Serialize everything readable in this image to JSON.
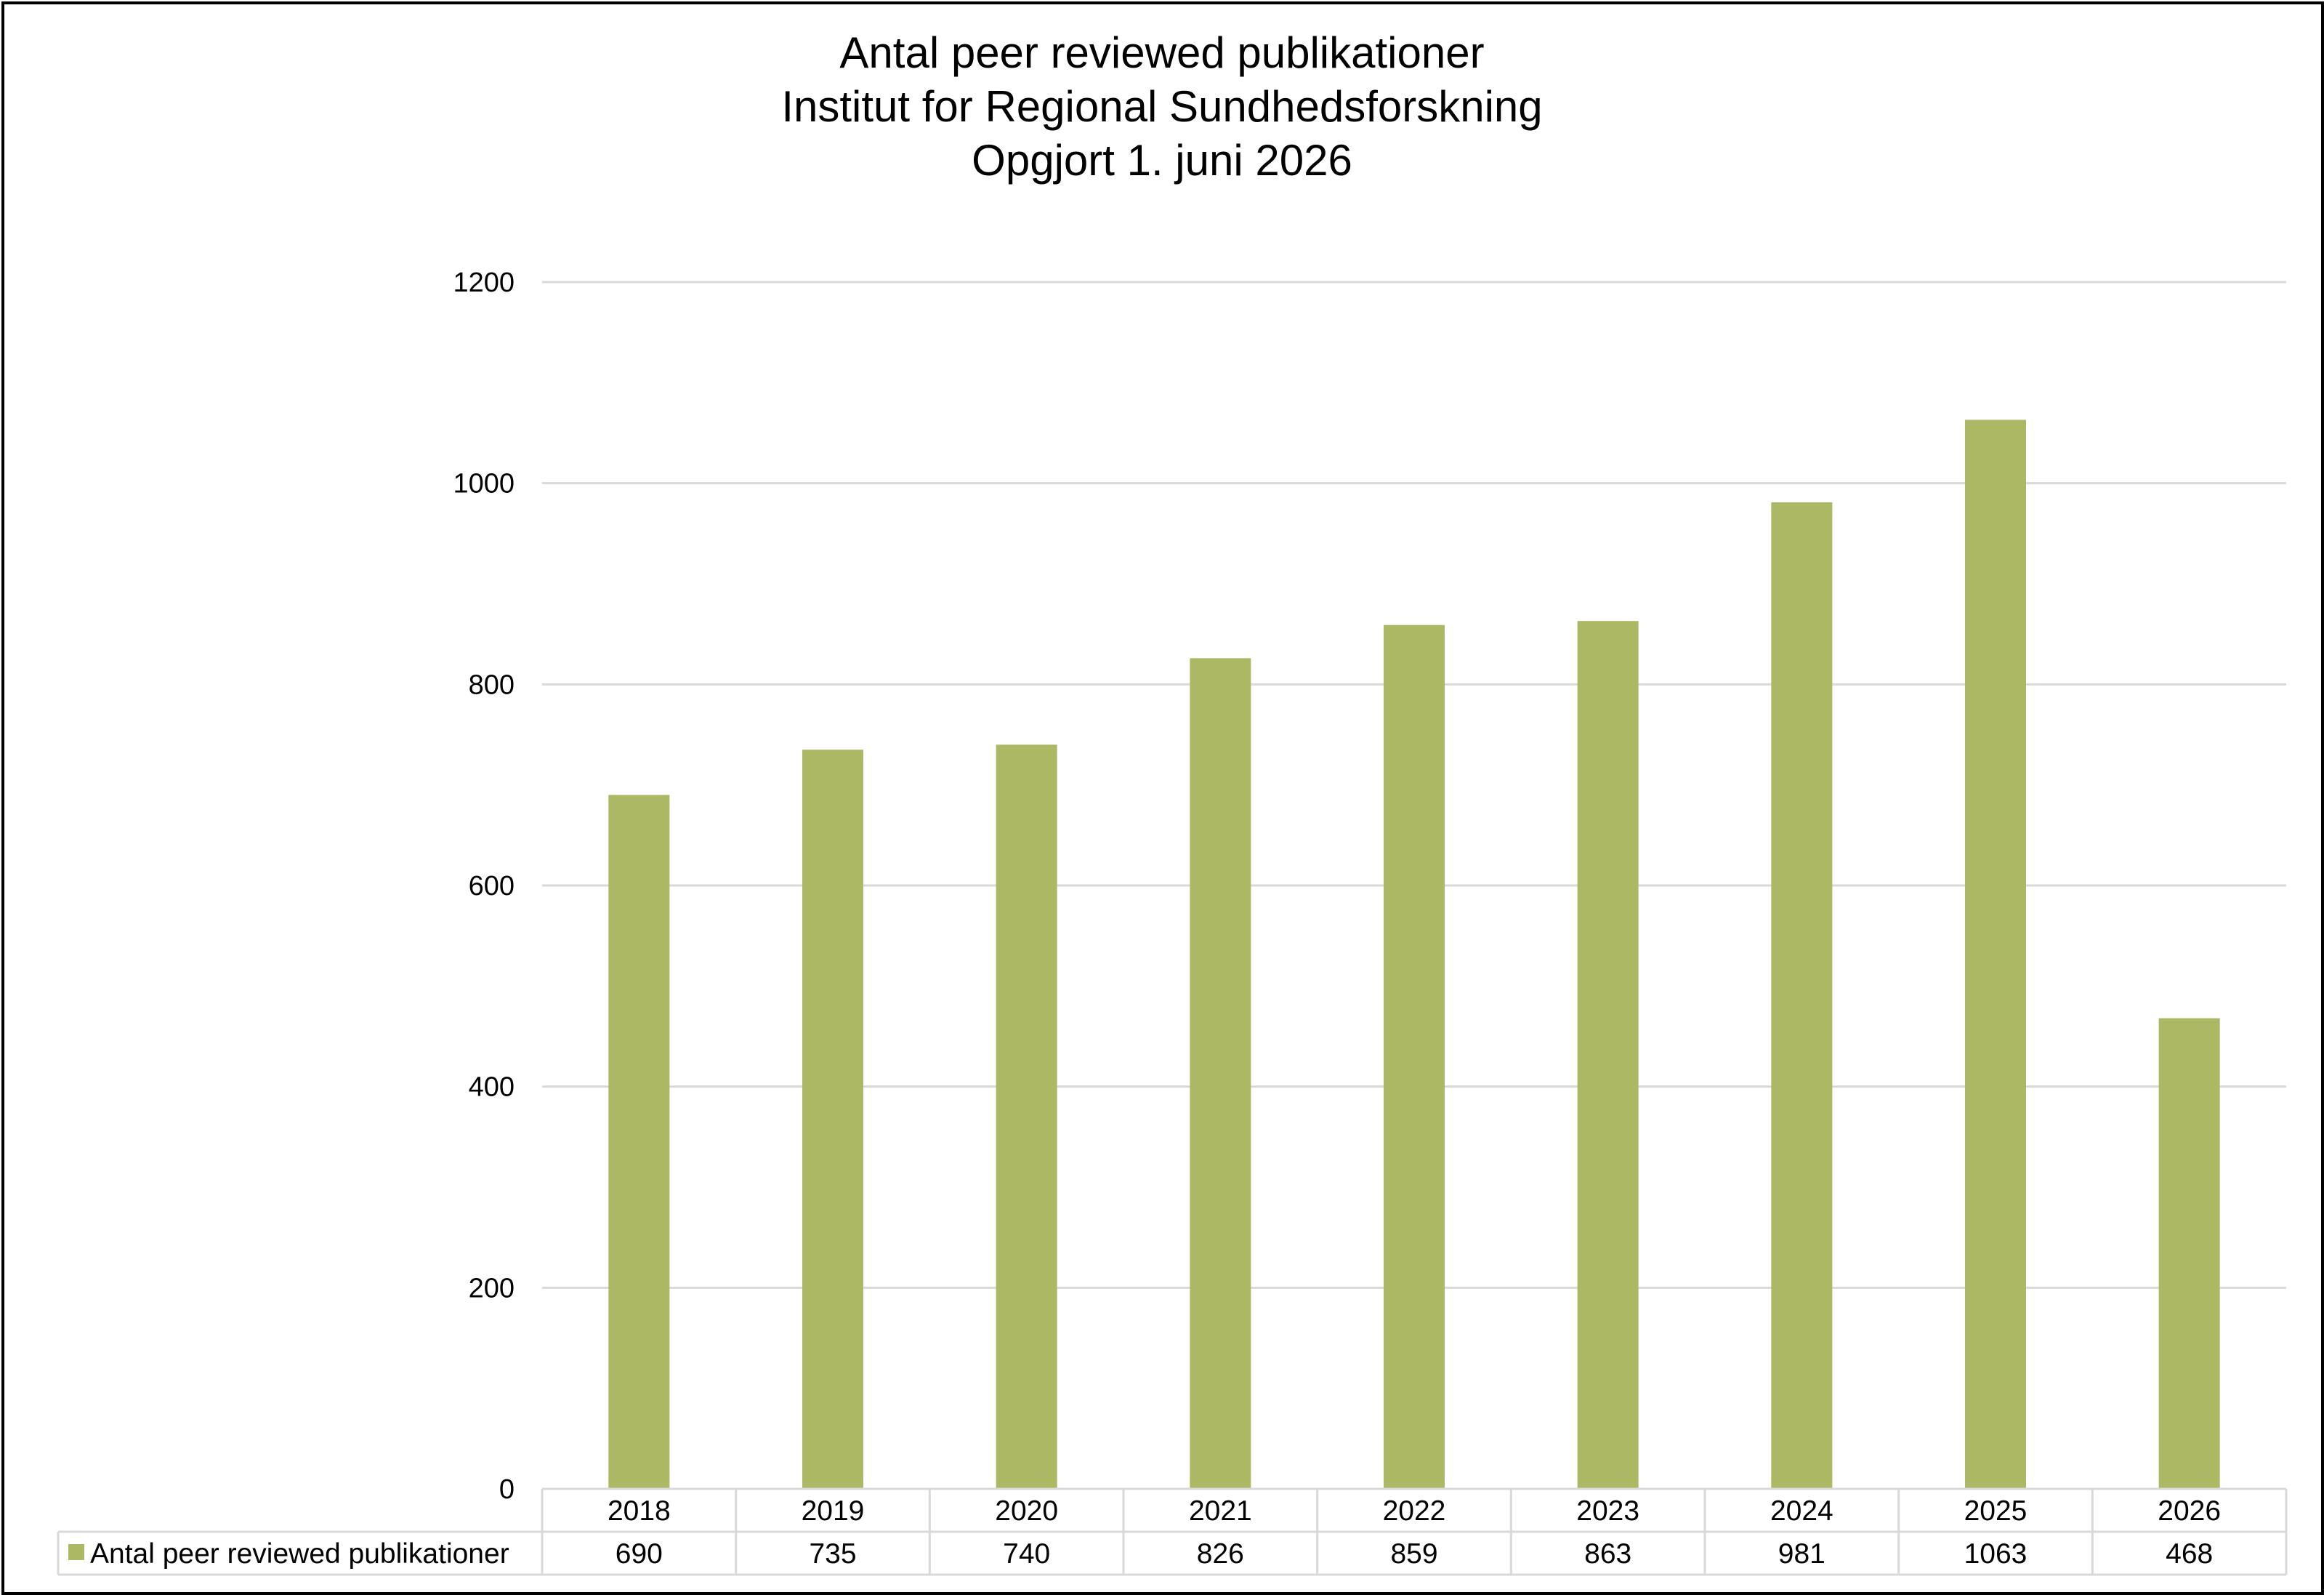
{
  "chart_data": {
    "type": "bar",
    "title_lines": [
      "Antal peer reviewed publikationer",
      "Institut for Regional Sundhedsforskning",
      "Opgjort 1. juni 2026"
    ],
    "categories": [
      "2018",
      "2019",
      "2020",
      "2021",
      "2022",
      "2023",
      "2024",
      "2025",
      "2026"
    ],
    "series": [
      {
        "name": "Antal peer reviewed publikationer",
        "values": [
          690,
          735,
          740,
          826,
          859,
          863,
          981,
          1063,
          468
        ],
        "color": "#adb865"
      }
    ],
    "xlabel": "",
    "ylabel": "",
    "ylim": [
      0,
      1200
    ],
    "yticks": [
      0,
      200,
      400,
      600,
      800,
      1000,
      1200
    ],
    "grid": true,
    "legend": "data-table-below",
    "data_table": true
  },
  "colors": {
    "bar": "#adb865",
    "grid": "#d9d9d9",
    "table_border": "#d9d9d9",
    "frame": "#000000"
  }
}
